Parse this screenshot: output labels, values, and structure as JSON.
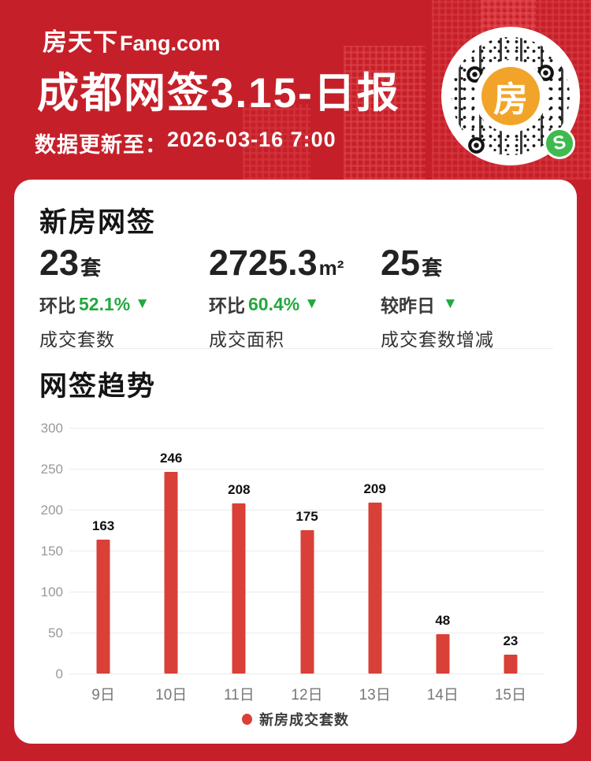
{
  "header": {
    "logo_cn": "房天下",
    "logo_en": "Fang.com",
    "title": "成都网签3.15-日报",
    "update_label": "数据更新至：",
    "update_time": "2026-03-16 7:00",
    "qr_center_char": "房",
    "qr_badge_glyph": "S"
  },
  "new_home": {
    "section_title": "新房网签",
    "stats": [
      {
        "value": "23",
        "unit": "套",
        "delta_label": "环比",
        "delta_value": "52.1%",
        "delta_dir": "▼",
        "caption": "成交套数"
      },
      {
        "value": "2725.3",
        "unit": "m²",
        "delta_label": "环比",
        "delta_value": "60.4%",
        "delta_dir": "▼",
        "caption": "成交面积"
      },
      {
        "value": "25",
        "unit": "套",
        "delta_label": "较昨日",
        "delta_value": "",
        "delta_dir": "▼",
        "caption": "成交套数增减"
      }
    ]
  },
  "trend": {
    "section_title": "网签趋势",
    "legend": "新房成交套数"
  },
  "chart_data": {
    "type": "bar",
    "title": "网签趋势",
    "categories": [
      "9日",
      "10日",
      "11日",
      "12日",
      "13日",
      "14日",
      "15日"
    ],
    "values": [
      163,
      246,
      208,
      175,
      209,
      48,
      23
    ],
    "series_name": "新房成交套数",
    "ylim": [
      0,
      300
    ],
    "ytick_step": 50,
    "grid": true,
    "legend_position": "bottom"
  },
  "colors": {
    "background_red": "#c5202a",
    "bar_red": "#d94038",
    "green": "#22a83e",
    "qr_orange": "#f2a42a",
    "badge_green": "#3dbb4e"
  }
}
